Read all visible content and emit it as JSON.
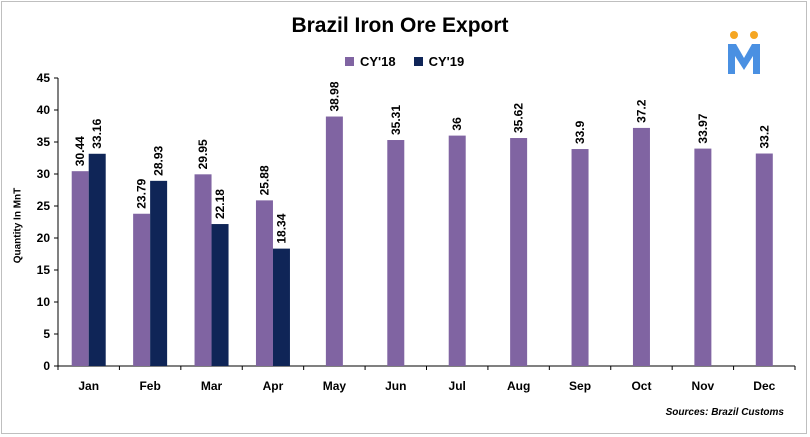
{
  "chart_data": {
    "type": "bar",
    "title": "Brazil Iron Ore Export",
    "ylabel": "Quantity In MnT",
    "xlabel": "",
    "ylim": [
      0,
      45
    ],
    "yticks": [
      0,
      5,
      10,
      15,
      20,
      25,
      30,
      35,
      40,
      45
    ],
    "grid": false,
    "legend_position": "top-center",
    "categories": [
      "Jan",
      "Feb",
      "Mar",
      "Apr",
      "May",
      "Jun",
      "Jul",
      "Aug",
      "Sep",
      "Oct",
      "Nov",
      "Dec"
    ],
    "series": [
      {
        "name": "CY'18",
        "color": "#8064a2",
        "values": [
          30.44,
          23.79,
          29.95,
          25.88,
          38.98,
          35.31,
          36,
          35.62,
          33.9,
          37.2,
          33.97,
          33.2
        ],
        "labels": [
          "30.44",
          "23.79",
          "29.95",
          "25.88",
          "38.98",
          "35.31",
          "36",
          "35.62",
          "33.9",
          "37.2",
          "33.97",
          "33.2"
        ]
      },
      {
        "name": "CY'19",
        "color": "#0f2557",
        "values": [
          33.16,
          28.93,
          22.18,
          18.34,
          null,
          null,
          null,
          null,
          null,
          null,
          null,
          null
        ],
        "labels": [
          "33.16",
          "28.93",
          "22.18",
          "18.34",
          "",
          "",
          "",
          "",
          "",
          "",
          "",
          ""
        ]
      }
    ],
    "source": "Sources: Brazil Customs"
  },
  "logo": {
    "icon": "m-logo-icon",
    "color": "#4a90e2",
    "accent": "#f5a623"
  }
}
